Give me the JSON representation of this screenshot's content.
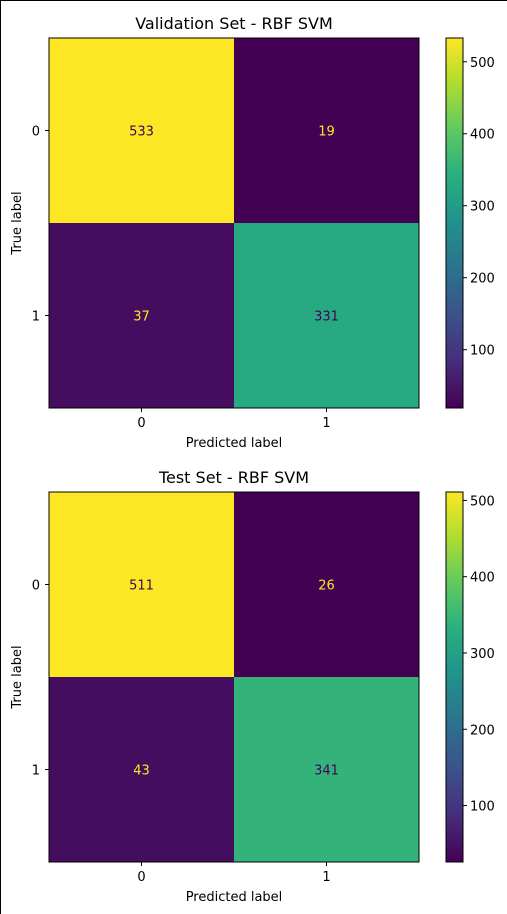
{
  "chart_data": [
    {
      "type": "heatmap",
      "title": "Validation Set - RBF SVM",
      "xlabel": "Predicted label",
      "ylabel": "True label",
      "x_categories": [
        "0",
        "1"
      ],
      "y_categories": [
        "0",
        "1"
      ],
      "matrix": [
        [
          533,
          19
        ],
        [
          37,
          331
        ]
      ],
      "colorbar": {
        "ticks": [
          100,
          200,
          300,
          400,
          500
        ],
        "range": [
          19,
          533
        ]
      },
      "colormap": "viridis",
      "text_colors": {
        "light": "#fde725",
        "dark": "#440154"
      },
      "grid": false
    },
    {
      "type": "heatmap",
      "title": "Test Set - RBF SVM",
      "xlabel": "Predicted label",
      "ylabel": "True label",
      "x_categories": [
        "0",
        "1"
      ],
      "y_categories": [
        "0",
        "1"
      ],
      "matrix": [
        [
          511,
          26
        ],
        [
          43,
          341
        ]
      ],
      "colorbar": {
        "ticks": [
          100,
          200,
          300,
          400,
          500
        ],
        "range": [
          26,
          511
        ]
      },
      "colormap": "viridis",
      "text_colors": {
        "light": "#fde725",
        "dark": "#440154"
      },
      "grid": false
    }
  ]
}
